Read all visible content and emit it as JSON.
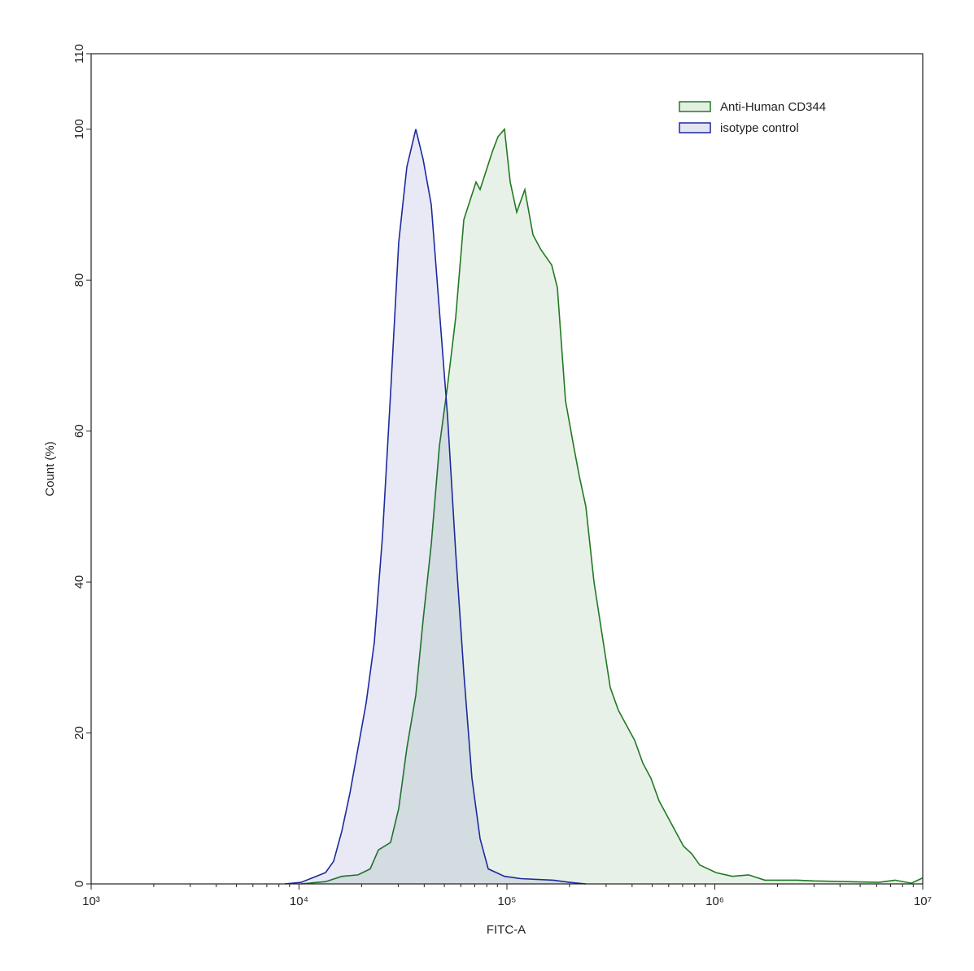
{
  "chart_data": {
    "type": "area",
    "x_label": "FITC-A",
    "y_label": "Count (%)",
    "xlog": true,
    "xlim": [
      1000,
      10000000
    ],
    "ylim": [
      0,
      110
    ],
    "xticks": [
      {
        "value": 1000,
        "label": "10³"
      },
      {
        "value": 10000,
        "label": "10⁴"
      },
      {
        "value": 100000,
        "label": "10⁵"
      },
      {
        "value": 1000000,
        "label": "10⁶"
      },
      {
        "value": 10000000,
        "label": "10⁷"
      }
    ],
    "yticks": [
      0,
      20,
      40,
      60,
      80,
      100,
      110
    ],
    "legend": "upper right",
    "series": [
      {
        "name": "Anti-Human CD344",
        "color": "#217a21",
        "x": [
          10230,
          13410,
          16060,
          19220,
          22000,
          24070,
          27560,
          30160,
          33000,
          36440,
          39530,
          43250,
          47320,
          51800,
          56670,
          62020,
          71000,
          74260,
          80550,
          85030,
          90560,
          97340,
          103700,
          111400,
          121900,
          133400,
          146000,
          164200,
          174800,
          191300,
          209400,
          223100,
          239700,
          262400,
          287100,
          314200,
          343800,
          376200,
          411800,
          450400,
          492900,
          539400,
          590200,
          645800,
          706800,
          773500,
          846300,
          1014000,
          1214000,
          1453000,
          1741000,
          2497000,
          2988000,
          4287000,
          6146000,
          7360000,
          8816000,
          10000000
        ],
        "values": [
          0,
          0.3,
          1,
          1.2,
          2,
          4.5,
          5.5,
          10,
          18,
          25,
          35,
          45,
          58,
          66,
          75,
          88,
          93,
          92,
          95,
          97,
          99,
          100,
          93,
          89,
          92,
          86,
          84,
          82,
          79,
          64,
          58,
          54,
          50,
          40,
          33,
          26,
          23,
          21,
          19,
          16,
          14,
          11,
          9,
          7,
          5,
          4,
          2.5,
          1.5,
          1,
          1.2,
          0.5,
          0.5,
          0.4,
          0.3,
          0.2,
          0.5,
          0.1,
          0.8
        ]
      },
      {
        "name": "isotype control",
        "color": "#1c2a9c",
        "x": [
          8540,
          10230,
          13410,
          14670,
          16060,
          17570,
          19220,
          21030,
          23010,
          25190,
          27560,
          30160,
          33000,
          36440,
          39530,
          43250,
          47320,
          51800,
          56670,
          62020,
          67860,
          74260,
          81280,
          97340,
          116550,
          167100,
          200200,
          239700
        ],
        "values": [
          0,
          0.2,
          1.5,
          3,
          7,
          12,
          18,
          24,
          32,
          46,
          65,
          85,
          95,
          100,
          96,
          90,
          76,
          62,
          44,
          28,
          14,
          6,
          2,
          1,
          0.7,
          0.5,
          0.2,
          0
        ]
      }
    ]
  }
}
